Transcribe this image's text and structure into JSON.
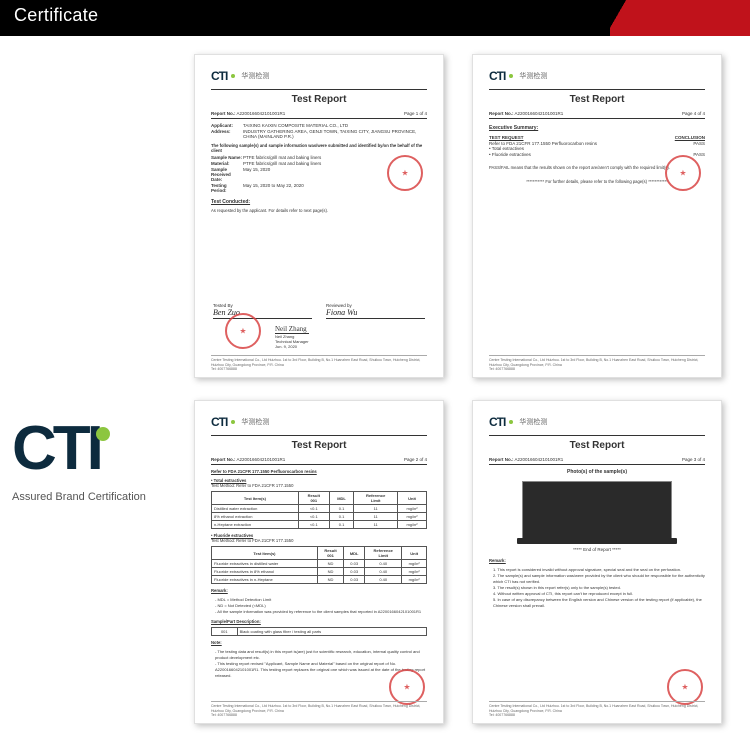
{
  "header": {
    "title": "Certificate",
    "accent_color": "#c0121b",
    "bar_color": "#000000"
  },
  "logo": {
    "text": "CTI",
    "tagline": "Assured Brand Certification",
    "dot_color": "#8cc63f",
    "text_color": "#0d2b3e"
  },
  "docs_common": {
    "brand": "CTI",
    "brand_cn": "华测检测",
    "title": "Test Report",
    "report_label": "Report No.:",
    "report_no": "A2200166042101001R1",
    "footer_addr": "Centre Testing International Co., Ltd Huizhou. 1st to 3rd Floor, Building B, No.1 Huanzhen East Road, Shuikou Town, Huicheng District, Huizhou City, Guangdong Province, P.R. China",
    "footer_tel": "Tel: 4007766888"
  },
  "doc1": {
    "page": "Page 1 of 4",
    "fields": [
      {
        "lbl": "Applicant:",
        "val": "TAIXING KAIXIN COMPOSITE MATERIAL CO., LTD"
      },
      {
        "lbl": "Address:",
        "val": "INDUSTRY GATHERING AREA, GENJI TOWN, TAIXING CITY, JIANGSU PROVINCE, CHINA (MAINLAND P.R.)"
      },
      {
        "lbl": "",
        "val": ""
      },
      {
        "lbl": "Sample Name:",
        "val": "PTFE fabrics/grill mat and baking liners"
      },
      {
        "lbl": "Material:",
        "val": "PTFE fabrics/grill mat and baking liners"
      },
      {
        "lbl": "Sample Received Date:",
        "val": "May 15, 2020"
      },
      {
        "lbl": "Testing Period:",
        "val": "May 15, 2020 to May 22, 2020"
      }
    ],
    "intro": "The following sample(s) and sample information was/were submitted and identified by/on the behalf of the client",
    "test_conducted_h": "Test Conducted:",
    "test_conducted": "As requested by the applicant. For details refer to next page(s).",
    "signed_by": "Tested By",
    "sign1": "Ben Zuo",
    "sign2": "Fiona Wu",
    "mgr_label": "Technical Manager",
    "mgr_name": "Neil Zhang",
    "mgr_date": "Jun. 9, 2020",
    "reviewed": "Reviewed by"
  },
  "doc2": {
    "page": "Page 4 of 4",
    "exec_h": "Executive Summary:",
    "th_req": "TEST REQUEST",
    "th_conc": "CONCLUSION",
    "rows": [
      {
        "req": "Refer to FDA 21CFR 177.1550 Perfluorocarbon resins\n• Total extractives",
        "conc": "PASS"
      },
      {
        "req": "• Fluoride extractives",
        "conc": "PASS"
      }
    ],
    "note": "PASS/FAIL means that the results shown on the report are/aren't comply with the required limit(s).",
    "footnote": "*********** For further details, please refer to the following page(s) ************"
  },
  "doc3": {
    "page": "Page 2 of 4",
    "ref_h": "Refer to FDA 21CFR 177.1550 Perfluorocarbon resins",
    "sec1_h": "• Total extractives",
    "sec1_method": "Test Method: Refer to FDA 21CFR 177.1550",
    "t1_headers": [
      "Test Item(s)",
      "Result\n001",
      "MDL",
      "Reference\nLimit",
      "Unit"
    ],
    "t1_rows": [
      [
        "Distilled water extraction",
        "<0.1",
        "0.1",
        "11",
        "mg/in²"
      ],
      [
        "8% ethanol extraction",
        "<0.1",
        "0.1",
        "11",
        "mg/in²"
      ],
      [
        "n-Heptane extraction",
        "<0.1",
        "0.1",
        "11",
        "mg/in²"
      ]
    ],
    "sec2_h": "• Fluoride extractives",
    "sec2_method": "Test Method: Refer to FDA 21CFR 177.1550",
    "t2_headers": [
      "Test Item(s)",
      "Result\n001",
      "MDL",
      "Reference\nLimit",
      "Unit"
    ],
    "t2_rows": [
      [
        "Fluoride extractives in distilled water",
        "ND",
        "0.03",
        "0.40",
        "mg/in²"
      ],
      [
        "Fluoride extractives in 8% ethanol",
        "ND",
        "0.03",
        "0.40",
        "mg/in²"
      ],
      [
        "Fluoride extractives in n-Heptane",
        "ND",
        "0.03",
        "0.40",
        "mg/in²"
      ]
    ],
    "remark_h": "Remark:",
    "remarks": [
      "MDL = Method Detection Limit",
      "ND = Not Detected (<MDL)",
      "All the sample information was provided by reference to the client samples that reported in A2200166042101001R1"
    ],
    "part_h": "Sample/Part Description:",
    "part_row": [
      "001",
      "Black coating with glass fiber / testing all parts"
    ],
    "note_h": "Note:",
    "notes": [
      "The testing data and result(s) in this report is(are) just for scientific research, education, internal quality control and product development etc.",
      "This testing report revised \"Applicant, Sample Name and Material\" based on the original report of No. A2200166042101001R1. This testing report replaces the original one which was issued at the date of the testing report released."
    ]
  },
  "doc4": {
    "page": "Page 3 of 4",
    "photo_h": "Photo(s) of the sample(s)",
    "end": "***** End of Report *****",
    "remark_h": "Remark:",
    "remarks": [
      "This report is considered invalid without approval signature, special seal and the seal on the perforation.",
      "The sample(s) and sample information was/were provided by the client who should be responsible for the authenticity which CTI has not verified.",
      "The result(s) shown in this report refer(s) only to the sample(s) tested.",
      "Without written approval of CTI, this report can't be reproduced except in full.",
      "In case of any discrepancy between the English version and Chinese version of the testing report (if applicable), the Chinese version shall prevail."
    ]
  }
}
